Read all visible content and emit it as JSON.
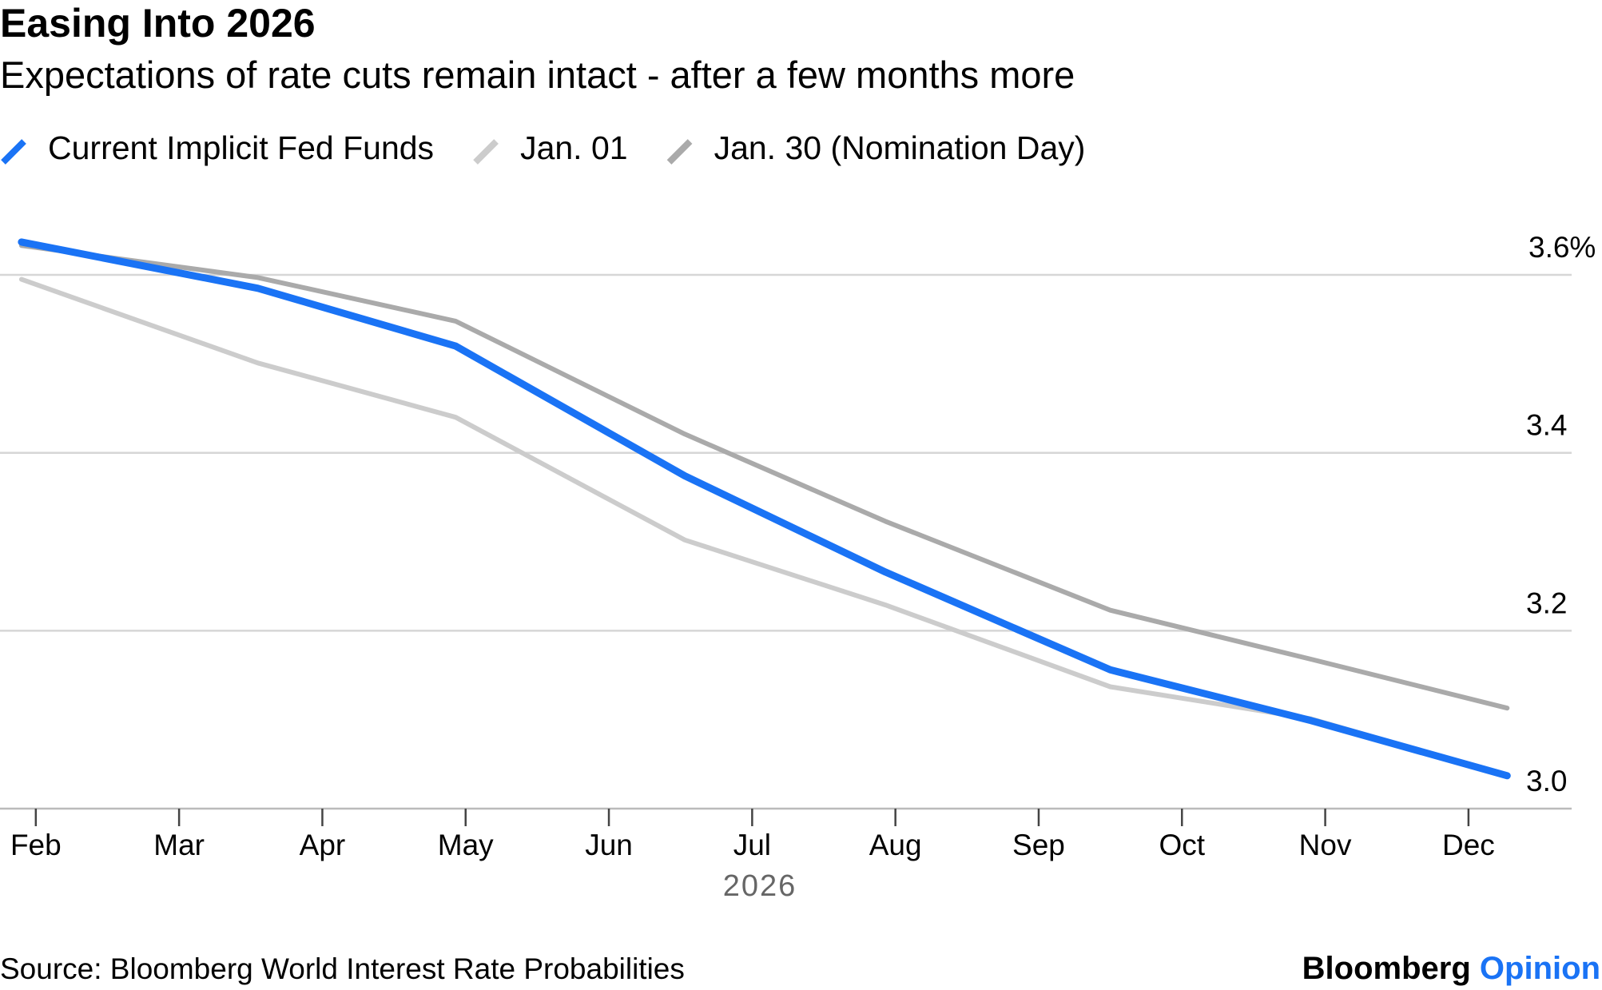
{
  "chart_data": {
    "type": "line",
    "title": "Easing Into 2026",
    "subtitle": "Expectations of rate cuts remain intact - after a few months more",
    "x_label": "2026",
    "x": [
      1.9,
      3.55,
      4.93,
      6.53,
      7.93,
      9.5,
      10.9,
      12.27
    ],
    "series": [
      {
        "name": "Current Implicit Fed Funds",
        "color": "#1a73f5",
        "values": [
          3.637,
          3.585,
          3.52,
          3.374,
          3.266,
          3.156,
          3.099,
          3.037
        ]
      },
      {
        "name": "Jan. 01",
        "color": "#cccccc",
        "values": [
          3.595,
          3.501,
          3.44,
          3.302,
          3.229,
          3.137,
          3.101,
          3.037
        ]
      },
      {
        "name": "Jan. 30 (Nomination Day)",
        "color": "#aaaaaa",
        "values": [
          3.633,
          3.597,
          3.548,
          3.421,
          3.323,
          3.223,
          3.168,
          3.113
        ]
      }
    ],
    "xlim": [
      1.75,
      12.72
    ],
    "xticks": [
      {
        "value": 2,
        "label": "Feb"
      },
      {
        "value": 3,
        "label": "Mar"
      },
      {
        "value": 4,
        "label": "Apr"
      },
      {
        "value": 5,
        "label": "May"
      },
      {
        "value": 6,
        "label": "Jun"
      },
      {
        "value": 7,
        "label": "Jul"
      },
      {
        "value": 8,
        "label": "Aug"
      },
      {
        "value": 9,
        "label": "Sep"
      },
      {
        "value": 10,
        "label": "Oct"
      },
      {
        "value": 11,
        "label": "Nov"
      },
      {
        "value": 12,
        "label": "Dec"
      }
    ],
    "ylim": [
      3.0,
      3.68
    ],
    "yticks": [
      {
        "value": 3,
        "label": "3.0"
      },
      3.2,
      3.4,
      {
        "value": 3.6,
        "label": "3.6%"
      }
    ],
    "grid": true,
    "source": "Source: Bloomberg World Interest Rate Probabilities",
    "brand": "Bloomberg",
    "brand_suffix": "Opinion"
  }
}
